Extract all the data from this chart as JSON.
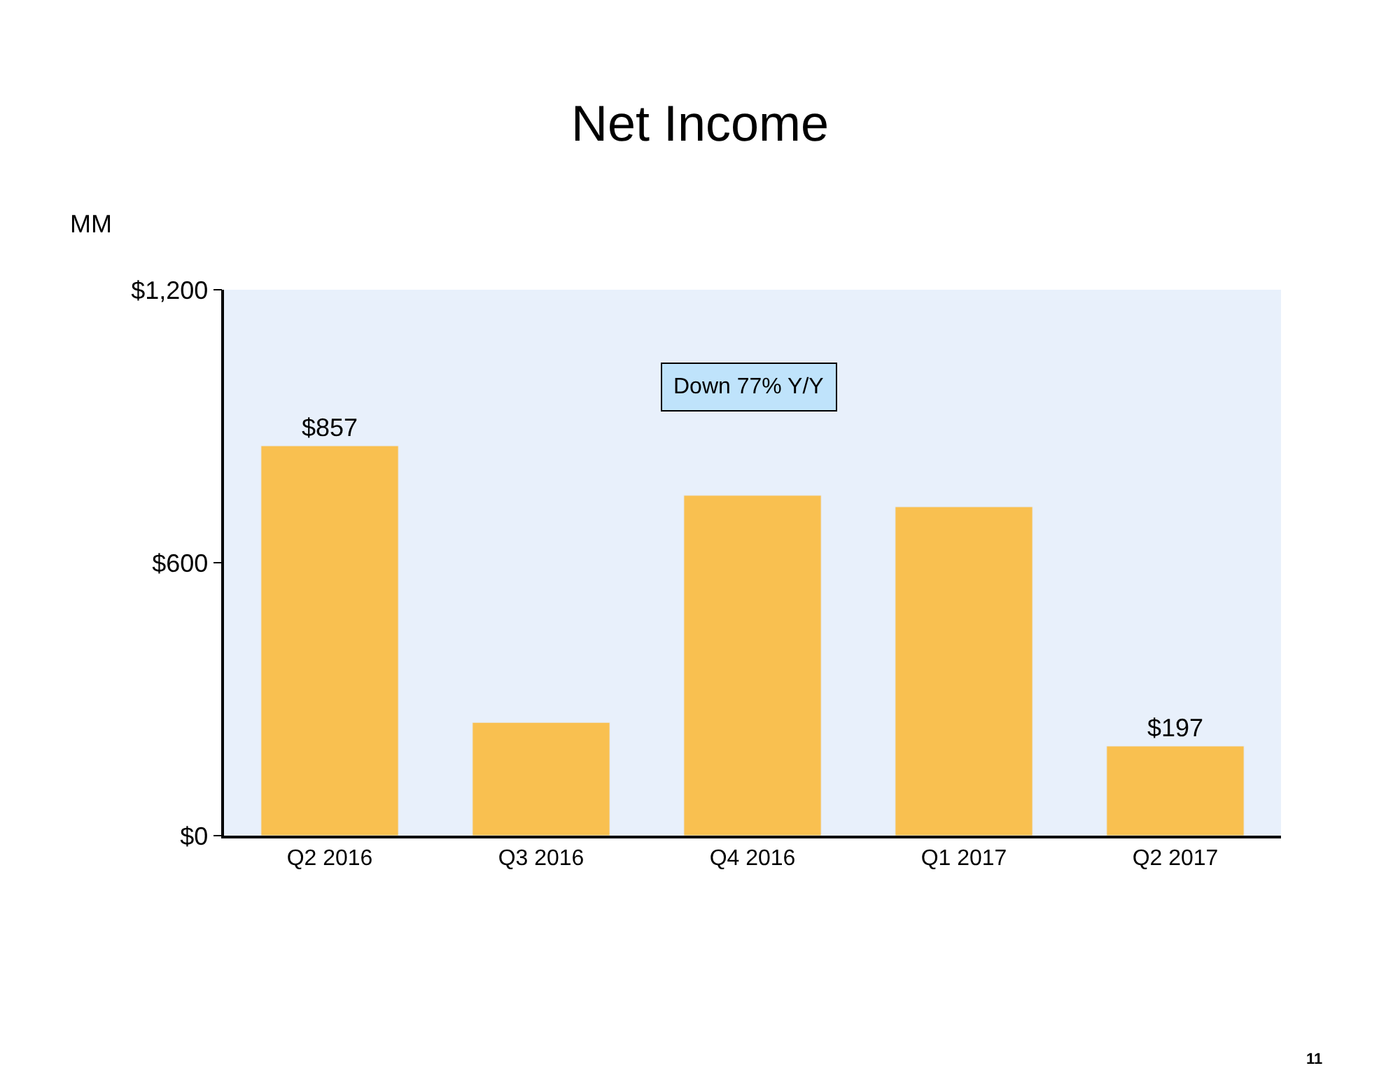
{
  "chart_data": {
    "type": "bar",
    "title": "Net Income",
    "ylabel": "MM",
    "categories": [
      "Q2 2016",
      "Q3 2016",
      "Q4 2016",
      "Q1 2017",
      "Q2 2017"
    ],
    "values": [
      857,
      249,
      748,
      723,
      197
    ],
    "value_labels": [
      "$857",
      null,
      null,
      null,
      "$197"
    ],
    "color": "#f9c050",
    "ylim": [
      0,
      1200
    ],
    "yticks": [
      {
        "value": 0,
        "label": "$0"
      },
      {
        "value": 600,
        "label": "$600"
      },
      {
        "value": 1200,
        "label": "$1,200"
      }
    ],
    "grid": false,
    "legend": false,
    "annotations": [
      "Down 77% Y/Y",
      "11"
    ]
  }
}
